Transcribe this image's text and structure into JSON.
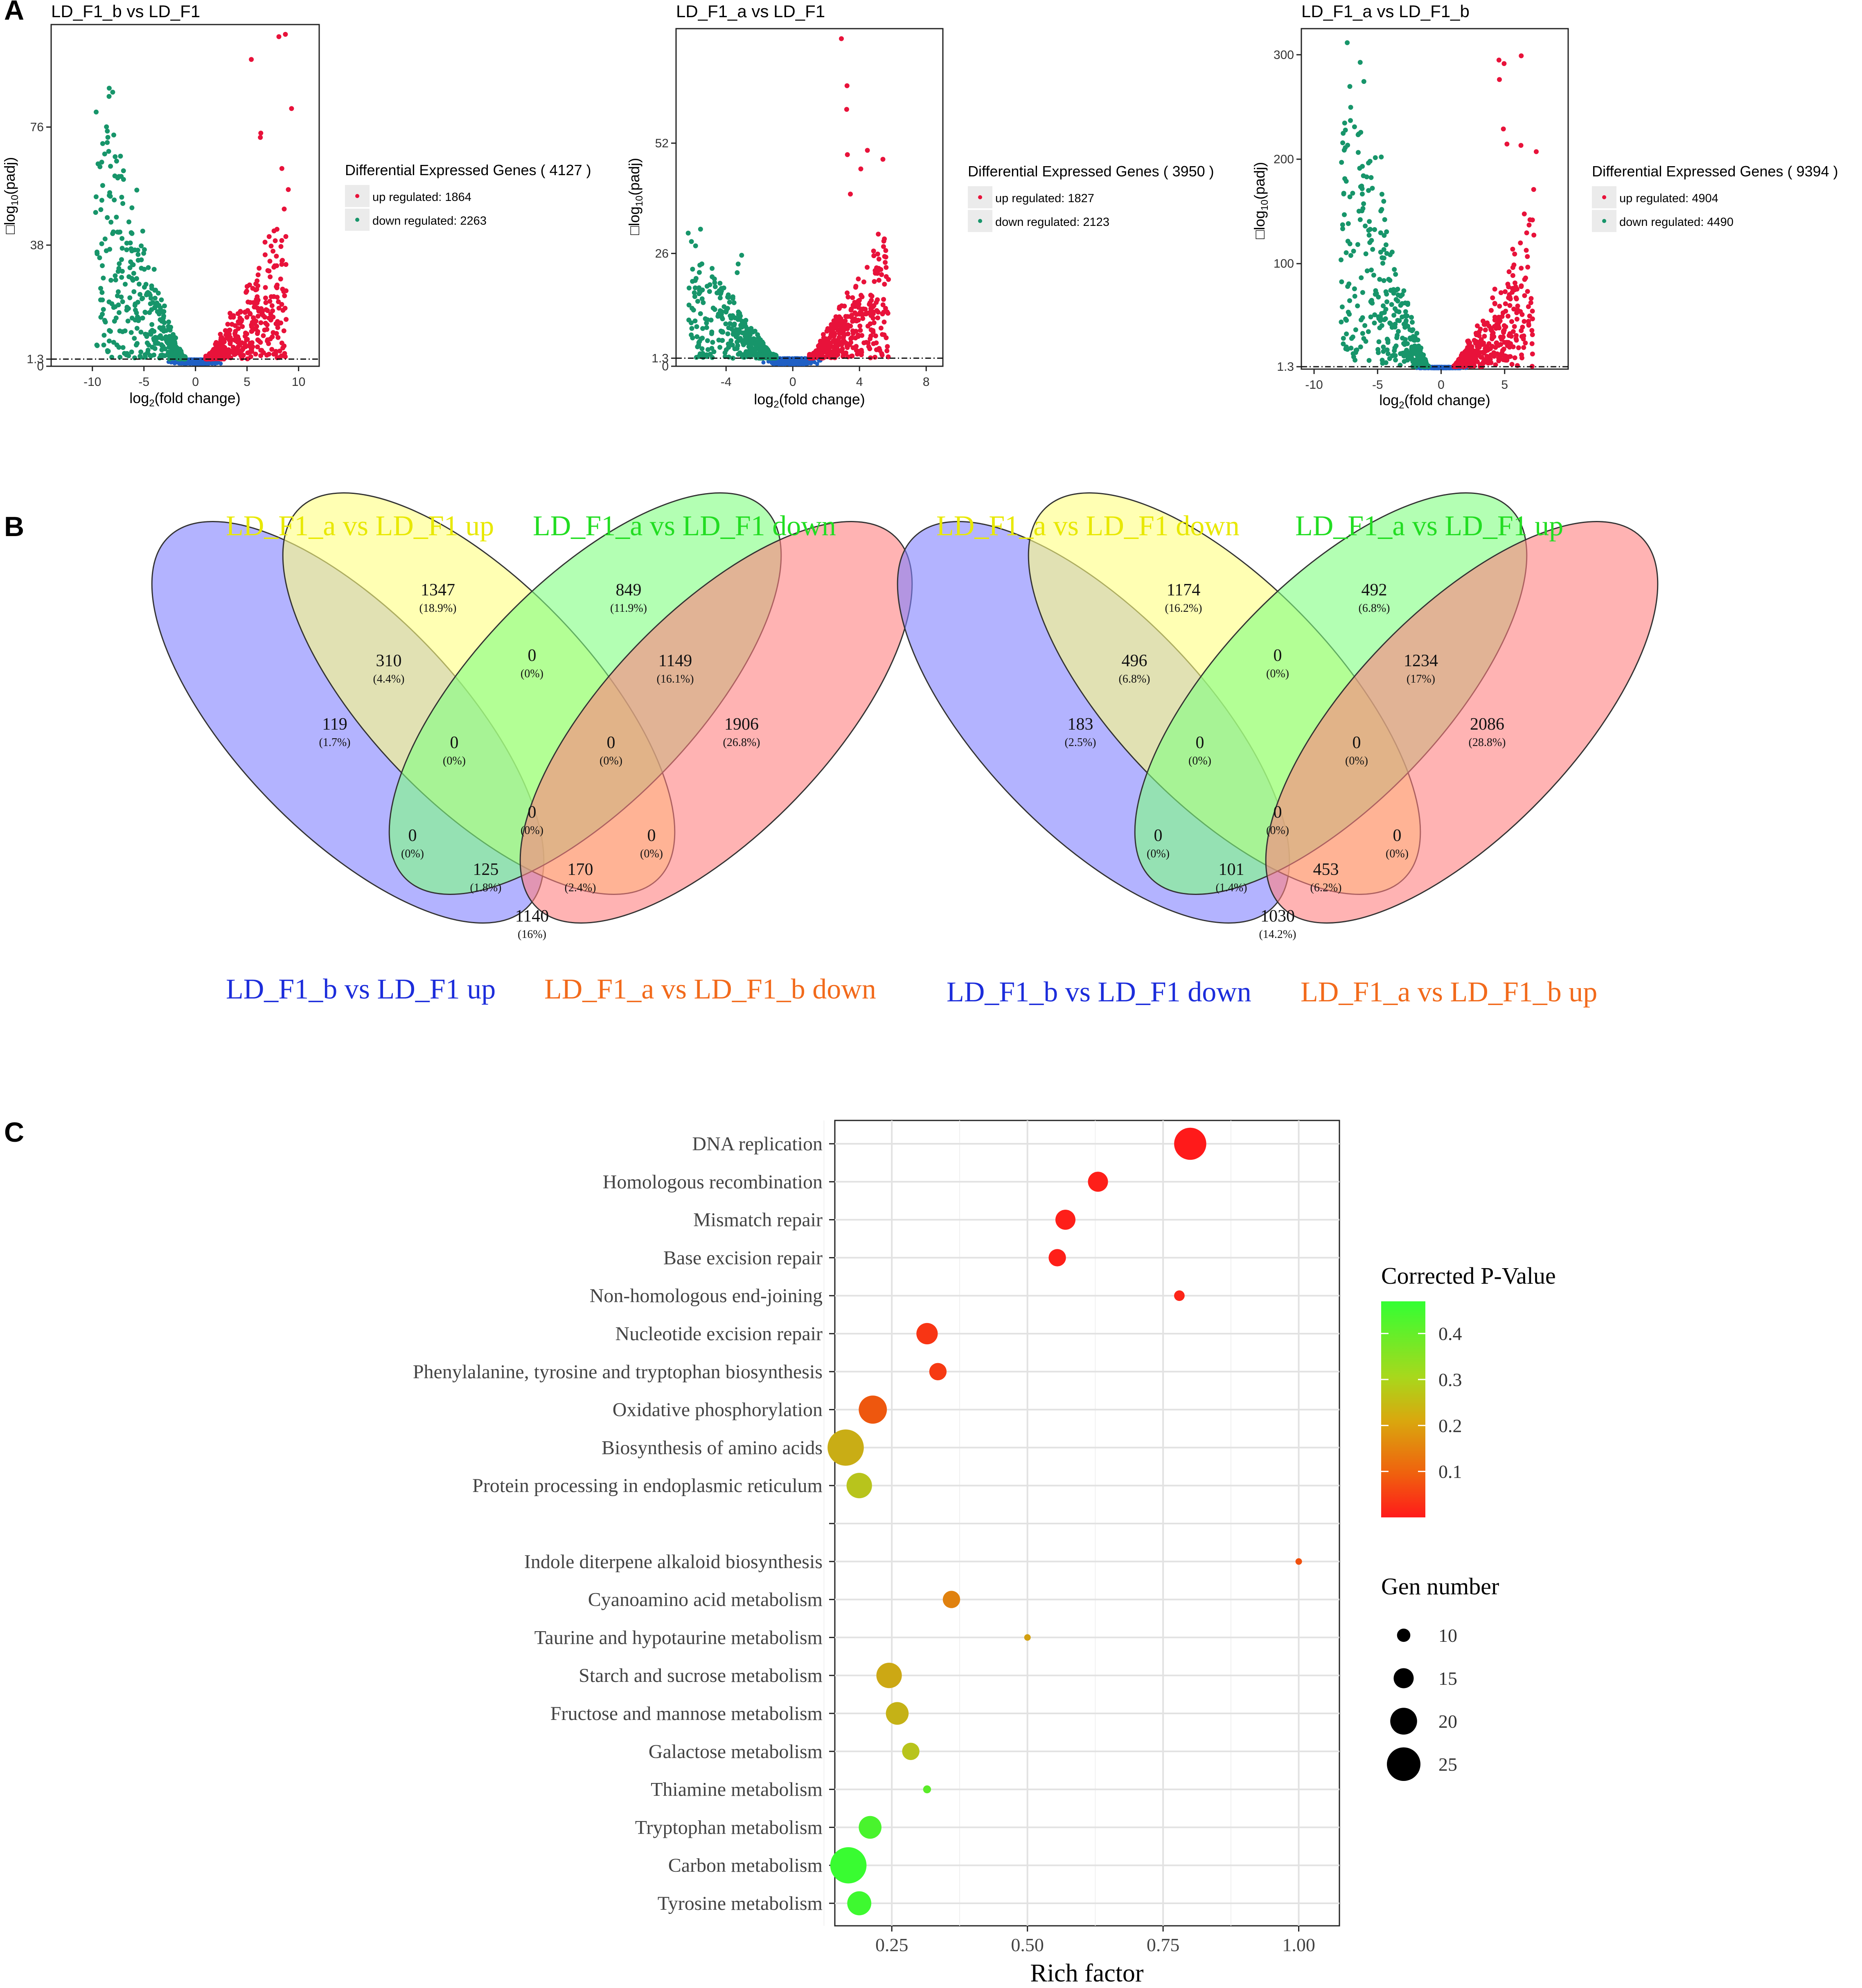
{
  "figure": {
    "panel_labels": [
      "A",
      "B",
      "C"
    ]
  },
  "colors": {
    "up": "#e8123a",
    "down": "#17956a",
    "ns": "#1f5fc4",
    "venn_blue": "#8080ff",
    "venn_yellow": "#ffff80",
    "venn_green": "#80ff80",
    "venn_red": "#ff8080",
    "venn_lab_yellow": "#e8e800",
    "venn_lab_green": "#22dd22",
    "venn_lab_blue": "#1c2ddb",
    "venn_lab_orange": "#f26a1b"
  },
  "chart_data": [
    {
      "type": "scatter",
      "id": "volcano1",
      "title": "LD_F1_b vs LD_F1",
      "xlabel": "log2(fold change)",
      "ylabel": "-log10(padj)",
      "xlim": [
        -14,
        12
      ],
      "ylim": [
        -1,
        109
      ],
      "xticks": [
        -10,
        -5,
        0,
        5,
        10
      ],
      "yticks": [
        -1,
        1.3,
        38,
        76
      ],
      "ytick_labels": [
        "0",
        "1.3",
        "38",
        "76"
      ],
      "threshold": 1.3,
      "legend_title": "Differential Expressed Genes ( 4127 )",
      "legend": [
        "up regulated: 1864",
        "down regulated: 2263"
      ],
      "up": 1864,
      "down": 2263,
      "total": 4127,
      "max_up": 108,
      "max_down": 92
    },
    {
      "type": "scatter",
      "id": "volcano2",
      "title": "LD_F1_a vs LD_F1",
      "xlabel": "log2(fold change)",
      "ylabel": "-log10(padj)",
      "xlim": [
        -7,
        9
      ],
      "ylim": [
        -0.6,
        79
      ],
      "xticks": [
        -4,
        0,
        4,
        8
      ],
      "yticks": [
        -0.6,
        1.3,
        26,
        52
      ],
      "ytick_labels": [
        "0",
        "1.3",
        "26",
        "52"
      ],
      "threshold": 1.3,
      "legend_title": "Differential Expressed Genes ( 3950 )",
      "legend": [
        "up regulated: 1827",
        "down regulated: 2123"
      ],
      "up": 1827,
      "down": 2123,
      "total": 3950,
      "max_up": 77,
      "max_down": 32
    },
    {
      "type": "scatter",
      "id": "volcano3",
      "title": "LD_F1_a vs LD_F1_b",
      "xlabel": "log2(fold change)",
      "ylabel": "-log10(padj)",
      "xlim": [
        -11,
        10
      ],
      "ylim": [
        -1,
        325
      ],
      "xticks": [
        -10,
        -5,
        0,
        5
      ],
      "yticks": [
        1.3,
        100,
        200,
        300
      ],
      "ytick_labels": [
        "1.3",
        "100",
        "200",
        "300"
      ],
      "threshold": 1.3,
      "legend_title": "Differential Expressed Genes ( 9394 )",
      "legend": [
        "up regulated: 4904",
        "down regulated: 4490"
      ],
      "up": 4904,
      "down": 4490,
      "total": 9394,
      "max_up": 325,
      "max_down": 325
    },
    {
      "type": "venn",
      "id": "venn1",
      "sets": [
        "LD_F1_b vs LD_F1 up",
        "LD_F1_a vs LD_F1 up",
        "LD_F1_a vs LD_F1 down",
        "LD_F1_a vs LD_F1_b down"
      ],
      "regions": [
        {
          "count": "1347",
          "pct": "(18.9%)"
        },
        {
          "count": "849",
          "pct": "(11.9%)"
        },
        {
          "count": "310",
          "pct": "(4.4%)"
        },
        {
          "count": "0",
          "pct": "(0%)"
        },
        {
          "count": "1149",
          "pct": "(16.1%)"
        },
        {
          "count": "119",
          "pct": "(1.7%)"
        },
        {
          "count": "1906",
          "pct": "(26.8%)"
        },
        {
          "count": "0",
          "pct": "(0%)"
        },
        {
          "count": "0",
          "pct": "(0%)"
        },
        {
          "count": "0",
          "pct": "(0%)"
        },
        {
          "count": "0",
          "pct": "(0%)"
        },
        {
          "count": "0",
          "pct": "(0%)"
        },
        {
          "count": "125",
          "pct": "(1.8%)"
        },
        {
          "count": "170",
          "pct": "(2.4%)"
        },
        {
          "count": "1140",
          "pct": "(16%)"
        }
      ]
    },
    {
      "type": "venn",
      "id": "venn2",
      "sets": [
        "LD_F1_b vs LD_F1 down",
        "LD_F1_a vs LD_F1 down",
        "LD_F1_a vs LD_F1 up",
        "LD_F1_a vs LD_F1_b up"
      ],
      "regions": [
        {
          "count": "1174",
          "pct": "(16.2%)"
        },
        {
          "count": "492",
          "pct": "(6.8%)"
        },
        {
          "count": "496",
          "pct": "(6.8%)"
        },
        {
          "count": "0",
          "pct": "(0%)"
        },
        {
          "count": "1234",
          "pct": "(17%)"
        },
        {
          "count": "183",
          "pct": "(2.5%)"
        },
        {
          "count": "2086",
          "pct": "(28.8%)"
        },
        {
          "count": "0",
          "pct": "(0%)"
        },
        {
          "count": "0",
          "pct": "(0%)"
        },
        {
          "count": "0",
          "pct": "(0%)"
        },
        {
          "count": "0",
          "pct": "(0%)"
        },
        {
          "count": "0",
          "pct": "(0%)"
        },
        {
          "count": "101",
          "pct": "(1.4%)"
        },
        {
          "count": "453",
          "pct": "(6.2%)"
        },
        {
          "count": "1030",
          "pct": "(14.2%)"
        }
      ]
    },
    {
      "type": "scatter",
      "id": "bubble",
      "xlabel": "Rich factor",
      "xlim": [
        0.145,
        1.075
      ],
      "xticks": [
        0.25,
        0.5,
        0.75,
        1.0
      ],
      "xtick_labels": [
        "0.25",
        "0.50",
        "0.75",
        "1.00"
      ],
      "color_legend_title": "Corrected P-Value",
      "color_ticks": [
        0.4,
        0.3,
        0.2,
        0.1
      ],
      "size_legend_title": "Gen number",
      "size_ticks": [
        10,
        15,
        20,
        25
      ],
      "categories": [
        "DNA replication",
        "Homologous recombination",
        "Mismatch repair",
        "Base excision repair",
        "Non-homologous end-joining",
        "Nucleotide excision repair",
        "Phenylalanine, tyrosine and tryptophan biosynthesis",
        "Oxidative phosphorylation",
        "Biosynthesis of amino acids",
        "Protein processing in endoplasmic reticulum",
        "",
        "Indole diterpene alkaloid biosynthesis",
        "Cyanoamino acid metabolism",
        "Taurine and hypotaurine metabolism",
        "Starch and sucrose metabolism",
        "Fructose and mannose metabolism",
        "Galactose metabolism",
        "Thiamine metabolism",
        "Tryptophan metabolism",
        "Carbon metabolism",
        "Tyrosine metabolism"
      ],
      "points": [
        {
          "term": "DNA replication",
          "rich": 0.8,
          "p": 0.0,
          "n": 24
        },
        {
          "term": "Homologous recombination",
          "rich": 0.63,
          "p": 0.01,
          "n": 15
        },
        {
          "term": "Mismatch repair",
          "rich": 0.57,
          "p": 0.01,
          "n": 15
        },
        {
          "term": "Base excision repair",
          "rich": 0.555,
          "p": 0.01,
          "n": 13
        },
        {
          "term": "Non-homologous end-joining",
          "rich": 0.78,
          "p": 0.02,
          "n": 8
        },
        {
          "term": "Nucleotide excision repair",
          "rich": 0.315,
          "p": 0.05,
          "n": 16
        },
        {
          "term": "Phenylalanine, tyrosine and tryptophan biosynthesis",
          "rich": 0.335,
          "p": 0.06,
          "n": 13
        },
        {
          "term": "Oxidative phosphorylation",
          "rich": 0.215,
          "p": 0.11,
          "n": 21
        },
        {
          "term": "Biosynthesis of amino acids",
          "rich": 0.165,
          "p": 0.25,
          "n": 27
        },
        {
          "term": "Protein processing in endoplasmic reticulum",
          "rich": 0.19,
          "p": 0.3,
          "n": 19
        },
        {
          "term": "Indole diterpene alkaloid biosynthesis",
          "rich": 1.0,
          "p": 0.1,
          "n": 5
        },
        {
          "term": "Cyanoamino acid metabolism",
          "rich": 0.36,
          "p": 0.17,
          "n": 13
        },
        {
          "term": "Taurine and hypotaurine metabolism",
          "rich": 0.5,
          "p": 0.22,
          "n": 5
        },
        {
          "term": "Starch and sucrose metabolism",
          "rich": 0.245,
          "p": 0.24,
          "n": 19
        },
        {
          "term": "Fructose and mannose metabolism",
          "rich": 0.26,
          "p": 0.26,
          "n": 17
        },
        {
          "term": "Galactose metabolism",
          "rich": 0.285,
          "p": 0.3,
          "n": 13
        },
        {
          "term": "Thiamine metabolism",
          "rich": 0.315,
          "p": 0.4,
          "n": 6
        },
        {
          "term": "Tryptophan metabolism",
          "rich": 0.21,
          "p": 0.43,
          "n": 17
        },
        {
          "term": "Carbon metabolism",
          "rich": 0.17,
          "p": 0.46,
          "n": 27
        },
        {
          "term": "Tyrosine metabolism",
          "rich": 0.19,
          "p": 0.45,
          "n": 18
        }
      ]
    }
  ]
}
